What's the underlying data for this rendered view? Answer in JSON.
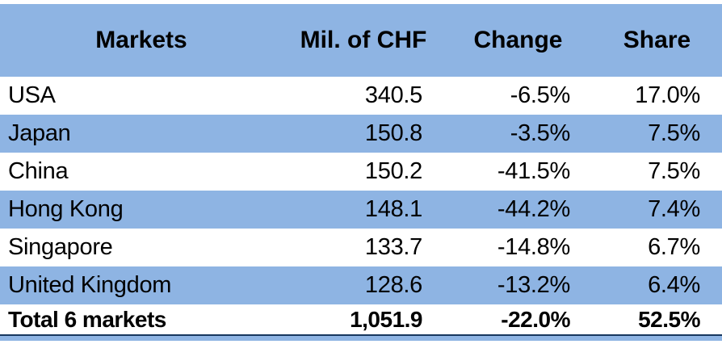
{
  "table": {
    "headers": [
      "Markets",
      "Mil. of CHF",
      "Change",
      "Share"
    ],
    "rows": [
      {
        "market": "USA",
        "mil_chf": "340.5",
        "change": "-6.5%",
        "share": "17.0%"
      },
      {
        "market": "Japan",
        "mil_chf": "150.8",
        "change": "-3.5%",
        "share": "7.5%"
      },
      {
        "market": "China",
        "mil_chf": "150.2",
        "change": "-41.5%",
        "share": "7.5%"
      },
      {
        "market": "Hong Kong",
        "mil_chf": "148.1",
        "change": "-44.2%",
        "share": "7.4%"
      },
      {
        "market": "Singapore",
        "mil_chf": "133.7",
        "change": "-14.8%",
        "share": "6.7%"
      },
      {
        "market": "United Kingdom",
        "mil_chf": "128.6",
        "change": "-13.2%",
        "share": "6.4%"
      }
    ],
    "total_row": {
      "market": "Total 6 markets",
      "mil_chf": "1,051.9",
      "change": "-22.0%",
      "share": "52.5%"
    }
  },
  "chart_data": {
    "type": "table",
    "columns": [
      "Markets",
      "Mil. of CHF",
      "Change",
      "Share"
    ],
    "rows": [
      [
        "USA",
        340.5,
        -6.5,
        17.0
      ],
      [
        "Japan",
        150.8,
        -3.5,
        7.5
      ],
      [
        "China",
        150.2,
        -41.5,
        7.5
      ],
      [
        "Hong Kong",
        148.1,
        -44.2,
        7.4
      ],
      [
        "Singapore",
        133.7,
        -14.8,
        6.7
      ],
      [
        "United Kingdom",
        128.6,
        -13.2,
        6.4
      ]
    ],
    "total": [
      "Total 6 markets",
      1051.9,
      -22.0,
      52.5
    ],
    "units": {
      "mil_chf": "Mil. of CHF",
      "change": "percent",
      "share": "percent"
    },
    "notes": "Alternate rows highlighted blue: Japan, Hong Kong, United Kingdom"
  },
  "colors": {
    "header_bg": "#8EB4E3",
    "row_highlight_bg": "#8EB4E3",
    "accent_line": "#17375E",
    "text": "#000000",
    "background": "#FFFFFF"
  }
}
